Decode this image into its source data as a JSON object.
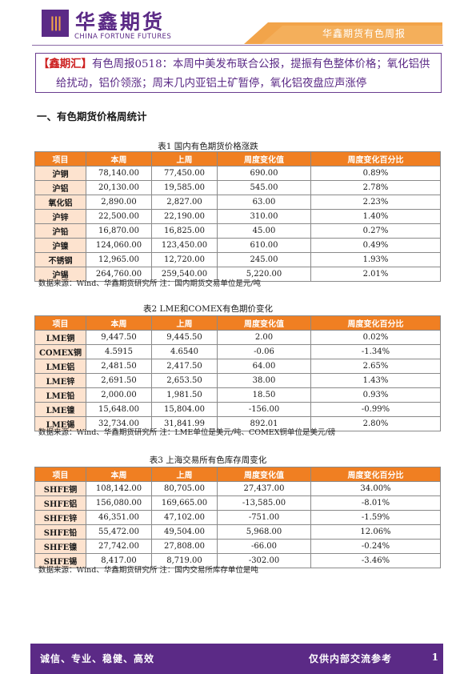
{
  "header": {
    "logo_glyph": "|||",
    "brand_cn": "华鑫期货",
    "brand_en": "CHINA FORTUNE FUTURES",
    "report_title": "华鑫期货有色周报"
  },
  "headline": {
    "tag": "【鑫期汇】",
    "line1": "有色周报0518：本周中美发布联合公报，提振有色整体价格；氧化铝供",
    "line2": "给扰动，铝价领涨；周末几内亚铝土矿暂停，氧化铝夜盘应声涨停"
  },
  "section_title": "一、有色期货价格周统计",
  "table_headers": [
    "项目",
    "本周",
    "上周",
    "周度变化值",
    "周度变化百分比"
  ],
  "tables": [
    {
      "caption": "表1  国内有色期货价格涨跌",
      "rows": [
        [
          "沪铜",
          "78,140.00",
          "77,450.00",
          "690.00",
          "0.89%"
        ],
        [
          "沪铝",
          "20,130.00",
          "19,585.00",
          "545.00",
          "2.78%"
        ],
        [
          "氧化铝",
          "2,890.00",
          "2,827.00",
          "63.00",
          "2.23%"
        ],
        [
          "沪锌",
          "22,500.00",
          "22,190.00",
          "310.00",
          "1.40%"
        ],
        [
          "沪铅",
          "16,870.00",
          "16,825.00",
          "45.00",
          "0.27%"
        ],
        [
          "沪镍",
          "124,060.00",
          "123,450.00",
          "610.00",
          "0.49%"
        ],
        [
          "不锈钢",
          "12,965.00",
          "12,720.00",
          "245.00",
          "1.93%"
        ],
        [
          "沪锡",
          "264,760.00",
          "259,540.00",
          "5,220.00",
          "2.01%"
        ]
      ],
      "source": "数据来源：Wind、华鑫期货研究所      注：国内期货交易单位是元/吨"
    },
    {
      "caption": "表2  LME和COMEX有色期价变化",
      "rows": [
        [
          "LME铜",
          "9,447.50",
          "9,445.50",
          "2.00",
          "0.02%"
        ],
        [
          "COMEX铜",
          "4.5915",
          "4.6540",
          "-0.06",
          "-1.34%"
        ],
        [
          "LME铝",
          "2,481.50",
          "2,417.50",
          "64.00",
          "2.65%"
        ],
        [
          "LME锌",
          "2,691.50",
          "2,653.50",
          "38.00",
          "1.43%"
        ],
        [
          "LME铅",
          "2,000.00",
          "1,981.50",
          "18.50",
          "0.93%"
        ],
        [
          "LME镍",
          "15,648.00",
          "15,804.00",
          "-156.00",
          "-0.99%"
        ],
        [
          "LME锡",
          "32,734.00",
          "31,841.99",
          "892.01",
          "2.80%"
        ]
      ],
      "source": "数据来源：Wind、华鑫期货研究所      注：LME单位是美元/吨、COMEX铜单位是美元/磅"
    },
    {
      "caption": "表3  上海交易所有色库存周变化",
      "rows": [
        [
          "SHFE铜",
          "108,142.00",
          "80,705.00",
          "27,437.00",
          "34.00%"
        ],
        [
          "SHFE铝",
          "156,080.00",
          "169,665.00",
          "-13,585.00",
          "-8.01%"
        ],
        [
          "SHFE锌",
          "46,351.00",
          "47,102.00",
          "-751.00",
          "-1.59%"
        ],
        [
          "SHFE铅",
          "55,472.00",
          "49,504.00",
          "5,968.00",
          "12.06%"
        ],
        [
          "SHFE镍",
          "27,742.00",
          "27,808.00",
          "-66.00",
          "-0.24%"
        ],
        [
          "SHFE锡",
          "8,417.00",
          "8,719.00",
          "-302.00",
          "-3.46%"
        ]
      ],
      "source": "数据来源：Wind、华鑫期货研究所      注：国内交易所库存单位是吨"
    }
  ],
  "footer": {
    "left": "诚信、专业、稳健、高效",
    "right": "仅供内部交流参考",
    "page": "1"
  },
  "colors": {
    "brand_purple": "#5b2a86",
    "header_orange": "#f07f22",
    "row_label_fill": "#fde3cf",
    "headline_red": "#cc1f1f"
  }
}
